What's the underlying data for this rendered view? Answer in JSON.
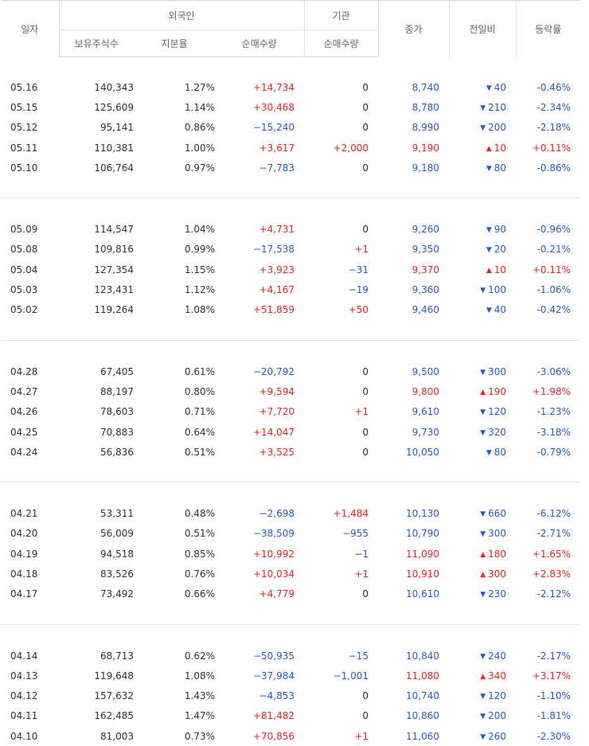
{
  "headers": {
    "date": "일자",
    "foreign": "외국인",
    "institution": "기관",
    "holdings": "보유주식수",
    "ratio": "지분율",
    "foreign_net": "순매수량",
    "inst_net": "순매수량",
    "close": "종가",
    "change": "전일비",
    "rate": "등락률"
  },
  "groups": [
    [
      {
        "date": "05.16",
        "holdings": "140,343",
        "ratio": "1.27%",
        "foreign_net": "+14,734",
        "inst_net": "0",
        "close": "8,740",
        "dir": "down",
        "change": "40",
        "rate": "-0.46%"
      },
      {
        "date": "05.15",
        "holdings": "125,609",
        "ratio": "1.14%",
        "foreign_net": "+30,468",
        "inst_net": "0",
        "close": "8,780",
        "dir": "down",
        "change": "210",
        "rate": "-2.34%"
      },
      {
        "date": "05.12",
        "holdings": "95,141",
        "ratio": "0.86%",
        "foreign_net": "−15,240",
        "inst_net": "0",
        "close": "8,990",
        "dir": "down",
        "change": "200",
        "rate": "-2.18%"
      },
      {
        "date": "05.11",
        "holdings": "110,381",
        "ratio": "1.00%",
        "foreign_net": "+3,617",
        "inst_net": "+2,000",
        "close": "9,190",
        "dir": "up",
        "change": "10",
        "rate": "+0.11%"
      },
      {
        "date": "05.10",
        "holdings": "106,764",
        "ratio": "0.97%",
        "foreign_net": "−7,783",
        "inst_net": "0",
        "close": "9,180",
        "dir": "down",
        "change": "80",
        "rate": "-0.86%"
      }
    ],
    [
      {
        "date": "05.09",
        "holdings": "114,547",
        "ratio": "1.04%",
        "foreign_net": "+4,731",
        "inst_net": "0",
        "close": "9,260",
        "dir": "down",
        "change": "90",
        "rate": "-0.96%"
      },
      {
        "date": "05.08",
        "holdings": "109,816",
        "ratio": "0.99%",
        "foreign_net": "−17,538",
        "inst_net": "+1",
        "close": "9,350",
        "dir": "down",
        "change": "20",
        "rate": "-0.21%"
      },
      {
        "date": "05.04",
        "holdings": "127,354",
        "ratio": "1.15%",
        "foreign_net": "+3,923",
        "inst_net": "−31",
        "close": "9,370",
        "dir": "up",
        "change": "10",
        "rate": "+0.11%"
      },
      {
        "date": "05.03",
        "holdings": "123,431",
        "ratio": "1.12%",
        "foreign_net": "+4,167",
        "inst_net": "−19",
        "close": "9,360",
        "dir": "down",
        "change": "100",
        "rate": "-1.06%"
      },
      {
        "date": "05.02",
        "holdings": "119,264",
        "ratio": "1.08%",
        "foreign_net": "+51,859",
        "inst_net": "+50",
        "close": "9,460",
        "dir": "down",
        "change": "40",
        "rate": "-0.42%"
      }
    ],
    [
      {
        "date": "04.28",
        "holdings": "67,405",
        "ratio": "0.61%",
        "foreign_net": "−20,792",
        "inst_net": "0",
        "close": "9,500",
        "dir": "down",
        "change": "300",
        "rate": "-3.06%"
      },
      {
        "date": "04.27",
        "holdings": "88,197",
        "ratio": "0.80%",
        "foreign_net": "+9,594",
        "inst_net": "0",
        "close": "9,800",
        "dir": "up",
        "change": "190",
        "rate": "+1.98%"
      },
      {
        "date": "04.26",
        "holdings": "78,603",
        "ratio": "0.71%",
        "foreign_net": "+7,720",
        "inst_net": "+1",
        "close": "9,610",
        "dir": "down",
        "change": "120",
        "rate": "-1.23%"
      },
      {
        "date": "04.25",
        "holdings": "70,883",
        "ratio": "0.64%",
        "foreign_net": "+14,047",
        "inst_net": "0",
        "close": "9,730",
        "dir": "down",
        "change": "320",
        "rate": "-3.18%"
      },
      {
        "date": "04.24",
        "holdings": "56,836",
        "ratio": "0.51%",
        "foreign_net": "+3,525",
        "inst_net": "0",
        "close": "10,050",
        "dir": "down",
        "change": "80",
        "rate": "-0.79%"
      }
    ],
    [
      {
        "date": "04.21",
        "holdings": "53,311",
        "ratio": "0.48%",
        "foreign_net": "−2,698",
        "inst_net": "+1,484",
        "close": "10,130",
        "dir": "down",
        "change": "660",
        "rate": "-6.12%"
      },
      {
        "date": "04.20",
        "holdings": "56,009",
        "ratio": "0.51%",
        "foreign_net": "−38,509",
        "inst_net": "−955",
        "close": "10,790",
        "dir": "down",
        "change": "300",
        "rate": "-2.71%"
      },
      {
        "date": "04.19",
        "holdings": "94,518",
        "ratio": "0.85%",
        "foreign_net": "+10,992",
        "inst_net": "−1",
        "close": "11,090",
        "dir": "up",
        "change": "180",
        "rate": "+1.65%"
      },
      {
        "date": "04.18",
        "holdings": "83,526",
        "ratio": "0.76%",
        "foreign_net": "+10,034",
        "inst_net": "+1",
        "close": "10,910",
        "dir": "up",
        "change": "300",
        "rate": "+2.83%"
      },
      {
        "date": "04.17",
        "holdings": "73,492",
        "ratio": "0.66%",
        "foreign_net": "+4,779",
        "inst_net": "0",
        "close": "10,610",
        "dir": "down",
        "change": "230",
        "rate": "-2.12%"
      }
    ],
    [
      {
        "date": "04.14",
        "holdings": "68,713",
        "ratio": "0.62%",
        "foreign_net": "−50,935",
        "inst_net": "−15",
        "close": "10,840",
        "dir": "down",
        "change": "240",
        "rate": "-2.17%"
      },
      {
        "date": "04.13",
        "holdings": "119,648",
        "ratio": "1.08%",
        "foreign_net": "−37,984",
        "inst_net": "−1,001",
        "close": "11,080",
        "dir": "up",
        "change": "340",
        "rate": "+3.17%"
      },
      {
        "date": "04.12",
        "holdings": "157,632",
        "ratio": "1.43%",
        "foreign_net": "−4,853",
        "inst_net": "0",
        "close": "10,740",
        "dir": "down",
        "change": "120",
        "rate": "-1.10%"
      },
      {
        "date": "04.11",
        "holdings": "162,485",
        "ratio": "1.47%",
        "foreign_net": "+81,482",
        "inst_net": "0",
        "close": "10,860",
        "dir": "down",
        "change": "200",
        "rate": "-1.81%"
      },
      {
        "date": "04.10",
        "holdings": "81,003",
        "ratio": "0.73%",
        "foreign_net": "+70,856",
        "inst_net": "+1",
        "close": "11,060",
        "dir": "down",
        "change": "260",
        "rate": "-2.30%"
      }
    ]
  ],
  "colors": {
    "up": "#ee2222",
    "down": "#2a5ac8",
    "text": "#333333",
    "header": "#666666"
  },
  "icons": {
    "up": "triangle-up-icon",
    "down": "triangle-down-icon"
  }
}
